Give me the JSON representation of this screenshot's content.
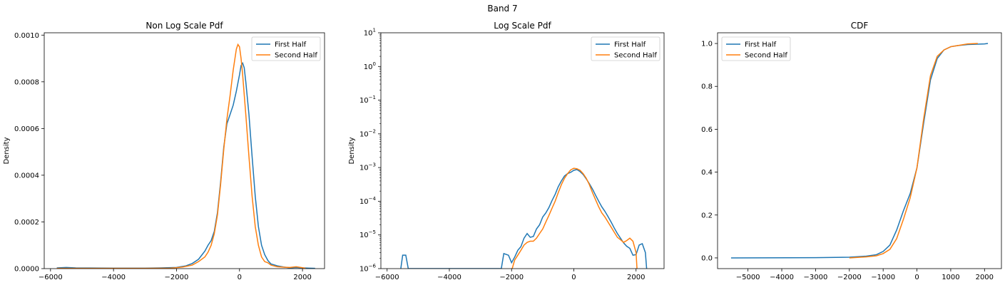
{
  "figure": {
    "suptitle": "Band 7"
  },
  "colors": {
    "first_half": "#1f77b4",
    "second_half": "#ff7f0e"
  },
  "chart_data": [
    {
      "type": "line",
      "title": "Non Log Scale Pdf",
      "xlabel": "",
      "ylabel": "Density",
      "xlim": [
        -6200,
        2700
      ],
      "ylim": [
        0,
        0.00101
      ],
      "xticks": [
        -6000,
        -4000,
        -2000,
        0,
        2000
      ],
      "xtick_labels": [
        "−6000",
        "−4000",
        "−2000",
        "0",
        "2000"
      ],
      "yticks": [
        0,
        0.0002,
        0.0004,
        0.0006,
        0.0008,
        0.001
      ],
      "ytick_labels": [
        "0.0000",
        "0.0002",
        "0.0004",
        "0.0006",
        "0.0008",
        "0.0010"
      ],
      "yscale": "linear",
      "legend": "upper-right",
      "series": [
        {
          "name": "First Half",
          "x": [
            -5800,
            -5500,
            -5200,
            -4000,
            -3000,
            -2500,
            -2000,
            -1700,
            -1500,
            -1300,
            -1100,
            -1000,
            -900,
            -800,
            -700,
            -600,
            -500,
            -400,
            -300,
            -200,
            -100,
            0,
            50,
            100,
            150,
            200,
            300,
            400,
            500,
            600,
            700,
            800,
            900,
            1000,
            1200,
            1400,
            1600,
            1800,
            2000,
            2200,
            2400
          ],
          "y": [
            3e-06,
            5e-06,
            3e-06,
            2e-06,
            2e-06,
            3e-06,
            5e-06,
            1.2e-05,
            2.2e-05,
            4e-05,
            7.5e-05,
            0.0001,
            0.00012,
            0.00016,
            0.00024,
            0.00037,
            0.00052,
            0.00062,
            0.00066,
            0.0007,
            0.00076,
            0.00083,
            0.00087,
            0.00088,
            0.00086,
            0.0008,
            0.00066,
            0.00048,
            0.00031,
            0.00018,
            0.0001,
            6e-05,
            3.5e-05,
            2e-05,
            1.2e-05,
            7e-06,
            3e-06,
            5e-06,
            3e-06,
            2e-06,
            1e-06
          ]
        },
        {
          "name": "Second Half",
          "x": [
            -5800,
            -4000,
            -3000,
            -2200,
            -2000,
            -1800,
            -1500,
            -1300,
            -1100,
            -1000,
            -900,
            -800,
            -700,
            -600,
            -500,
            -400,
            -300,
            -200,
            -100,
            -50,
            0,
            50,
            100,
            200,
            300,
            400,
            500,
            600,
            700,
            800,
            900,
            1000,
            1200,
            1400,
            1600,
            1800,
            2000,
            2100
          ],
          "y": [
            1e-06,
            1e-06,
            1e-06,
            2e-06,
            4e-06,
            7e-06,
            1.5e-05,
            3e-05,
            5e-05,
            7e-05,
            0.0001,
            0.00015,
            0.00023,
            0.00036,
            0.00051,
            0.00064,
            0.00074,
            0.00085,
            0.00094,
            0.00096,
            0.00095,
            0.0009,
            0.00083,
            0.00066,
            0.00048,
            0.00031,
            0.00018,
            0.0001,
            5e-05,
            3e-05,
            2.5e-05,
            1.5e-05,
            8e-06,
            6e-06,
            5e-06,
            8e-06,
            4e-06,
            1e-06
          ]
        }
      ]
    },
    {
      "type": "line",
      "title": "Log Scale Pdf",
      "xlabel": "",
      "ylabel": "Density",
      "xlim": [
        -6200,
        2900
      ],
      "ylim": [
        1e-06,
        10
      ],
      "xticks": [
        -6000,
        -4000,
        -2000,
        0,
        2000
      ],
      "xtick_labels": [
        "−6000",
        "−4000",
        "−2000",
        "0",
        "2000"
      ],
      "yticks": [
        1e-06,
        1e-05,
        0.0001,
        0.001,
        0.01,
        0.1,
        1,
        10
      ],
      "ytick_exponents": [
        "−6",
        "−5",
        "−4",
        "−3",
        "−2",
        "−1",
        "0",
        "1"
      ],
      "yscale": "log",
      "legend": "upper-right",
      "series": [
        {
          "name": "First Half",
          "x": [
            -5560,
            -5500,
            -5400,
            -5320,
            -2330,
            -2250,
            -2100,
            -2000,
            -1900,
            -1800,
            -1700,
            -1600,
            -1500,
            -1400,
            -1300,
            -1200,
            -1100,
            -1000,
            -900,
            -800,
            -700,
            -600,
            -500,
            -400,
            -300,
            -200,
            -100,
            0,
            100,
            200,
            300,
            400,
            500,
            600,
            700,
            800,
            900,
            1000,
            1100,
            1200,
            1300,
            1400,
            1500,
            1600,
            1700,
            1800,
            1900,
            2000,
            2100,
            2200,
            2300,
            2340
          ],
          "y": [
            1e-06,
            2.5e-06,
            2.5e-06,
            1e-06,
            1e-06,
            2.8e-06,
            2.5e-06,
            1.5e-06,
            2.2e-06,
            3.5e-06,
            4.5e-06,
            8e-06,
            1.1e-05,
            8.5e-06,
            9e-06,
            1.5e-05,
            2e-05,
            3.4e-05,
            4.5e-05,
            6.5e-05,
            0.000105,
            0.00016,
            0.00027,
            0.0004,
            0.00056,
            0.00066,
            0.00072,
            0.00083,
            0.00087,
            0.00076,
            0.00062,
            0.00046,
            0.00033,
            0.00023,
            0.00015,
            0.0001,
            6.8e-05,
            5e-05,
            3.5e-05,
            2.4e-05,
            1.6e-05,
            1.1e-05,
            8e-06,
            5.8e-06,
            4.6e-06,
            4e-06,
            2.5e-06,
            2.6e-06,
            5e-06,
            5.5e-06,
            3e-06,
            1e-06
          ]
        },
        {
          "name": "Second Half",
          "x": [
            -1980,
            -1900,
            -1800,
            -1700,
            -1600,
            -1500,
            -1400,
            -1300,
            -1200,
            -1100,
            -1000,
            -900,
            -800,
            -700,
            -600,
            -500,
            -400,
            -300,
            -200,
            -100,
            0,
            100,
            200,
            300,
            400,
            500,
            600,
            700,
            800,
            900,
            1000,
            1100,
            1200,
            1300,
            1400,
            1500,
            1600,
            1700,
            1800,
            1900,
            2000,
            2030
          ],
          "y": [
            1e-06,
            1.8e-06,
            2.5e-06,
            3.5e-06,
            5e-06,
            6e-06,
            6.5e-06,
            6.5e-06,
            8e-06,
            1.1e-05,
            1.5e-05,
            2.4e-05,
            3.8e-05,
            6.2e-05,
            0.0001,
            0.00018,
            0.00031,
            0.00048,
            0.00066,
            0.00085,
            0.00095,
            0.00092,
            0.00083,
            0.00066,
            0.00048,
            0.00031,
            0.00018,
            0.00011,
            6.8e-05,
            4.5e-05,
            3.4e-05,
            2.4e-05,
            1.7e-05,
            1.2e-05,
            8.5e-06,
            7.2e-06,
            6e-06,
            6.8e-06,
            8e-06,
            6.5e-06,
            3e-06,
            1e-06
          ]
        }
      ]
    },
    {
      "type": "line",
      "title": "CDF",
      "xlabel": "",
      "ylabel": "",
      "xlim": [
        -5900,
        2500
      ],
      "ylim": [
        -0.05,
        1.05
      ],
      "xticks": [
        -5000,
        -4000,
        -3000,
        -2000,
        -1000,
        0,
        1000,
        2000
      ],
      "xtick_labels": [
        "−5000",
        "−4000",
        "−3000",
        "−2000",
        "−1000",
        "0",
        "1000",
        "2000"
      ],
      "yticks": [
        0,
        0.2,
        0.4,
        0.6,
        0.8,
        1.0
      ],
      "ytick_labels": [
        "0.0",
        "0.2",
        "0.4",
        "0.6",
        "0.8",
        "1.0"
      ],
      "yscale": "linear",
      "legend": "upper-left",
      "series": [
        {
          "name": "First Half",
          "x": [
            -5500,
            -3000,
            -2000,
            -1500,
            -1200,
            -1000,
            -800,
            -600,
            -400,
            -200,
            0,
            200,
            400,
            600,
            800,
            1000,
            1200,
            1500,
            2000,
            2100
          ],
          "y": [
            0,
            0.001,
            0.003,
            0.008,
            0.015,
            0.03,
            0.06,
            0.13,
            0.22,
            0.3,
            0.42,
            0.63,
            0.83,
            0.93,
            0.97,
            0.985,
            0.99,
            0.995,
            0.998,
            1.0
          ]
        },
        {
          "name": "Second Half",
          "x": [
            -2000,
            -1800,
            -1500,
            -1200,
            -1000,
            -800,
            -600,
            -400,
            -200,
            0,
            200,
            400,
            600,
            800,
            1000,
            1200,
            1500,
            1800
          ],
          "y": [
            0,
            0.002,
            0.005,
            0.01,
            0.02,
            0.04,
            0.09,
            0.18,
            0.28,
            0.42,
            0.65,
            0.85,
            0.94,
            0.97,
            0.985,
            0.99,
            0.998,
            1.0
          ]
        }
      ]
    }
  ]
}
